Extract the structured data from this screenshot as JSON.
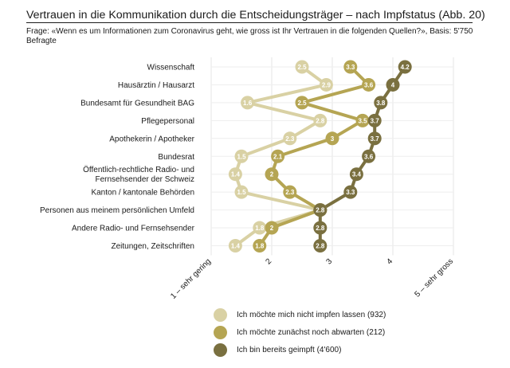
{
  "header": {
    "title": "Vertrauen in die Kommunikation durch die Entscheidungsträger – nach Impfstatus  (Abb. 20)",
    "subtitle": "Frage: «Wenn es um Informationen zum Coronavirus geht, wie gross ist Ihr Vertrauen in die folgenden Quellen?», Basis: 5'750 Befragte"
  },
  "chart_data": {
    "type": "line",
    "orientation": "horizontal-dot-plot",
    "title": "Vertrauen in die Kommunikation durch die Entscheidungsträger – nach Impfstatus  (Abb. 20)",
    "categories": [
      "Wissenschaft",
      "Hausärztin / Hausarzt",
      "Bundesamt für Gesundheit BAG",
      "Pflegepersonal",
      "Apothekerin / Apotheker",
      "Bundesrat",
      "Öffentlich-rechtliche Radio- und Fernsehsender der Schweiz",
      "Kanton / kantonale Behörden",
      "Personen aus meinem persönlichen Umfeld",
      "Andere Radio- und Fernsehsender",
      "Zeitungen, Zeitschriften"
    ],
    "category_lines": [
      [
        "Wissenschaft"
      ],
      [
        "Hausärztin / Hausarzt"
      ],
      [
        "Bundesamt für Gesundheit BAG"
      ],
      [
        "Pflegepersonal"
      ],
      [
        "Apothekerin / Apotheker"
      ],
      [
        "Bundesrat"
      ],
      [
        "Öffentlich-rechtliche Radio- und",
        "Fernsehsender der Schweiz"
      ],
      [
        "Kanton / kantonale Behörden"
      ],
      [
        "Personen aus meinem persönlichen Umfeld"
      ],
      [
        "Andere Radio- und Fernsehsender"
      ],
      [
        "Zeitungen, Zeitschriften"
      ]
    ],
    "series": [
      {
        "name": "Ich möchte mich nicht impfen lassen (932)",
        "color": "#d9d1a4",
        "values": [
          2.5,
          2.9,
          1.6,
          2.8,
          2.3,
          1.5,
          1.4,
          1.5,
          2.8,
          1.8,
          1.4
        ]
      },
      {
        "name": "Ich möchte zunächst noch abwarten (212)",
        "color": "#b5a553",
        "values": [
          3.3,
          3.6,
          2.5,
          3.5,
          3.0,
          2.1,
          2.0,
          2.3,
          2.8,
          2.0,
          1.8
        ]
      },
      {
        "name": "Ich bin bereits geimpft (4'600)",
        "color": "#7a7040",
        "values": [
          4.2,
          4.0,
          3.8,
          3.7,
          3.7,
          3.6,
          3.4,
          3.3,
          2.8,
          2.8,
          2.8
        ]
      }
    ],
    "x_ticks": [
      1,
      2,
      3,
      4,
      5
    ],
    "x_tick_labels": [
      "1 – sehr gering",
      "2",
      "3",
      "4",
      "5 – sehr gross"
    ],
    "xlim": [
      1,
      5
    ],
    "grid": true,
    "legend_position": "bottom"
  }
}
